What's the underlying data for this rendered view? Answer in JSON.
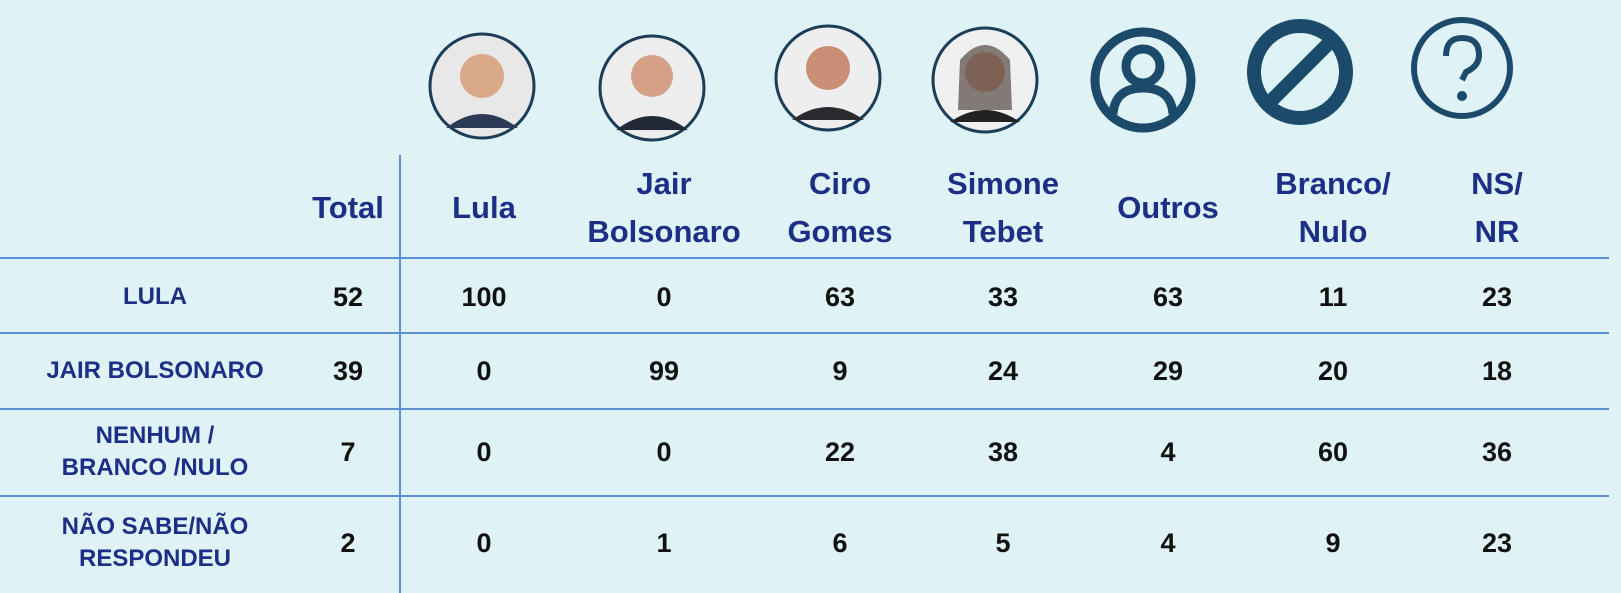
{
  "table": {
    "columns": [
      "Total",
      "Lula",
      "Jair Bolsonaro",
      "Ciro Gomes",
      "Simone Tebet",
      "Outros",
      "Branco/ Nulo",
      "NS/ NR"
    ],
    "rows": [
      {
        "label": "LULA",
        "values": [
          52,
          100,
          0,
          63,
          33,
          63,
          11,
          23
        ]
      },
      {
        "label": "JAIR BOLSONARO",
        "values": [
          39,
          0,
          99,
          9,
          24,
          29,
          20,
          18
        ]
      },
      {
        "label": "NENHUM / BRANCO /NULO",
        "values": [
          7,
          0,
          0,
          22,
          38,
          4,
          60,
          36
        ]
      },
      {
        "label": "NÃO SABE/NÃO RESPONDEU",
        "values": [
          2,
          0,
          1,
          6,
          5,
          4,
          9,
          23
        ]
      }
    ]
  }
}
